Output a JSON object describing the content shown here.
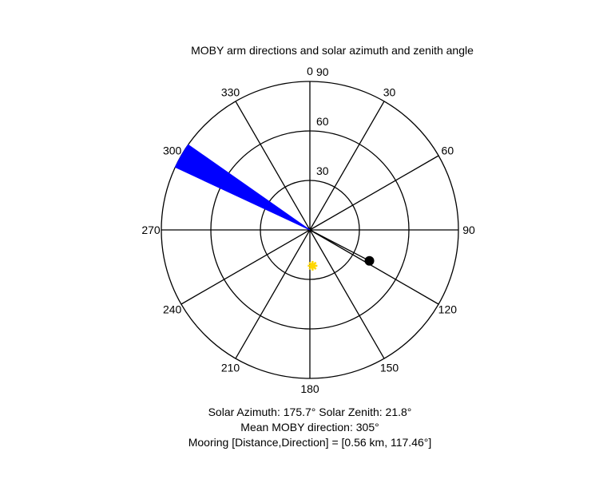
{
  "chart_data": {
    "type": "polar",
    "title": "MOBY arm directions and solar azimuth and zenith angle",
    "angle_ticks": [
      "0",
      "30",
      "60",
      "90",
      "120",
      "150",
      "180",
      "210",
      "240",
      "270",
      "300",
      "330"
    ],
    "radial_ticks": [
      "30",
      "60",
      "90"
    ],
    "radial_max": 90,
    "moby_arm_directions": {
      "color": "#0000ff",
      "range_deg": [
        295,
        305
      ]
    },
    "sun": {
      "color": "#ffd700",
      "azimuth_deg": 175.7,
      "zenith_deg": 21.8
    },
    "mooring": {
      "color": "#000000",
      "direction_deg": 117.46,
      "distance_km": 0.56
    }
  },
  "info": {
    "line1": "Solar Azimuth: 175.7°   Solar Zenith: 21.8°",
    "line2": "Mean MOBY direction: 305°",
    "line3": "Mooring [Distance,Direction] = [0.56 km, 117.46°]"
  }
}
